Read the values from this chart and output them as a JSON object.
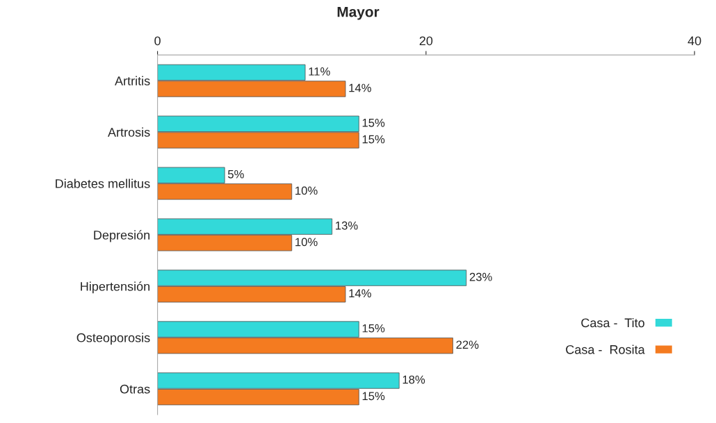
{
  "chart_data": {
    "type": "bar",
    "orientation": "horizontal",
    "title": "Mayor",
    "categories": [
      "Artritis",
      "Artrosis",
      "Diabetes mellitus",
      "Depresión",
      "Hipertensión",
      "Osteoporosis",
      "Otras"
    ],
    "series": [
      {
        "name": "Casa -  Tito",
        "color": "#33d9d9",
        "values": [
          11,
          15,
          5,
          13,
          23,
          15,
          18
        ],
        "value_labels": [
          "11%",
          "15%",
          "5%",
          "13%",
          "23%",
          "15%",
          "18%"
        ]
      },
      {
        "name": "Casa -  Rosita",
        "color": "#f47b20",
        "values": [
          14,
          15,
          10,
          10,
          14,
          22,
          15
        ],
        "value_labels": [
          "14%",
          "15%",
          "10%",
          "10%",
          "14%",
          "22%",
          "15%"
        ]
      }
    ],
    "xlim": [
      0,
      40
    ],
    "xticks": [
      0,
      20,
      40
    ],
    "grid": false,
    "legend": "bottom right"
  }
}
